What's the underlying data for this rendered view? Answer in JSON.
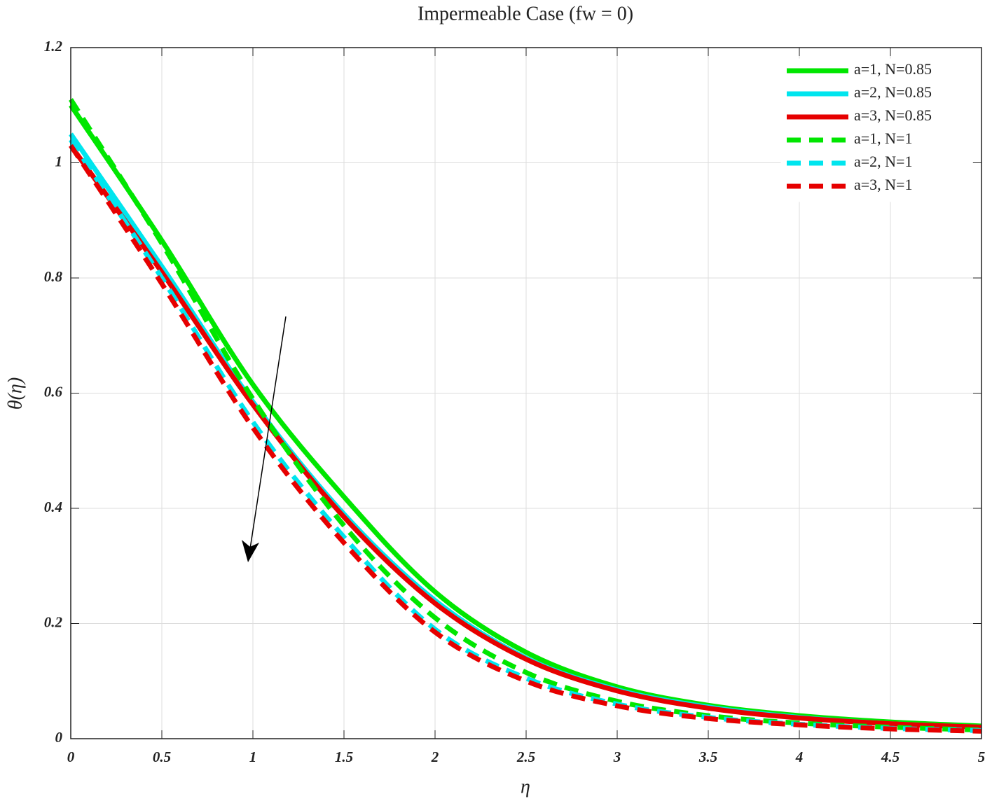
{
  "chart_data": {
    "type": "line",
    "title": "Impermeable Case (fw = 0)",
    "x_label": "η",
    "y_label": "θ(η)",
    "x": [
      0,
      0.5,
      1,
      1.5,
      2,
      2.5,
      3,
      3.5,
      4,
      4.5,
      5
    ],
    "xlim": [
      0,
      5
    ],
    "ylim": [
      0,
      1.2
    ],
    "xticks": [
      0,
      0.5,
      1,
      1.5,
      2,
      2.5,
      3,
      3.5,
      4,
      4.5,
      5
    ],
    "yticks": [
      0,
      0.2,
      0.4,
      0.6,
      0.8,
      1,
      1.2
    ],
    "grid": true,
    "legend": "upper right",
    "series": [
      {
        "name": "a=1, N=0.85",
        "color": "#00e600",
        "dash": false,
        "values": [
          1.1,
          0.865,
          0.615,
          0.42,
          0.255,
          0.15,
          0.09,
          0.058,
          0.04,
          0.029,
          0.022
        ]
      },
      {
        "name": "a=2, N=0.85",
        "color": "#00e5ee",
        "dash": false,
        "values": [
          1.05,
          0.82,
          0.585,
          0.39,
          0.24,
          0.14,
          0.085,
          0.055,
          0.037,
          0.026,
          0.02
        ]
      },
      {
        "name": "a=3, N=0.85",
        "color": "#e60000",
        "dash": false,
        "values": [
          1.03,
          0.81,
          0.58,
          0.385,
          0.235,
          0.138,
          0.083,
          0.053,
          0.036,
          0.026,
          0.02
        ]
      },
      {
        "name": "a=1, N=1",
        "color": "#00e600",
        "dash": true,
        "values": [
          1.11,
          0.86,
          0.59,
          0.37,
          0.21,
          0.115,
          0.065,
          0.04,
          0.027,
          0.02,
          0.015
        ]
      },
      {
        "name": "a=2, N=1",
        "color": "#00e5ee",
        "dash": true,
        "values": [
          1.04,
          0.8,
          0.55,
          0.35,
          0.19,
          0.105,
          0.06,
          0.037,
          0.025,
          0.018,
          0.014
        ]
      },
      {
        "name": "a=3, N=1",
        "color": "#e60000",
        "dash": true,
        "values": [
          1.03,
          0.79,
          0.54,
          0.34,
          0.185,
          0.1,
          0.057,
          0.035,
          0.024,
          0.017,
          0.013
        ]
      }
    ]
  }
}
